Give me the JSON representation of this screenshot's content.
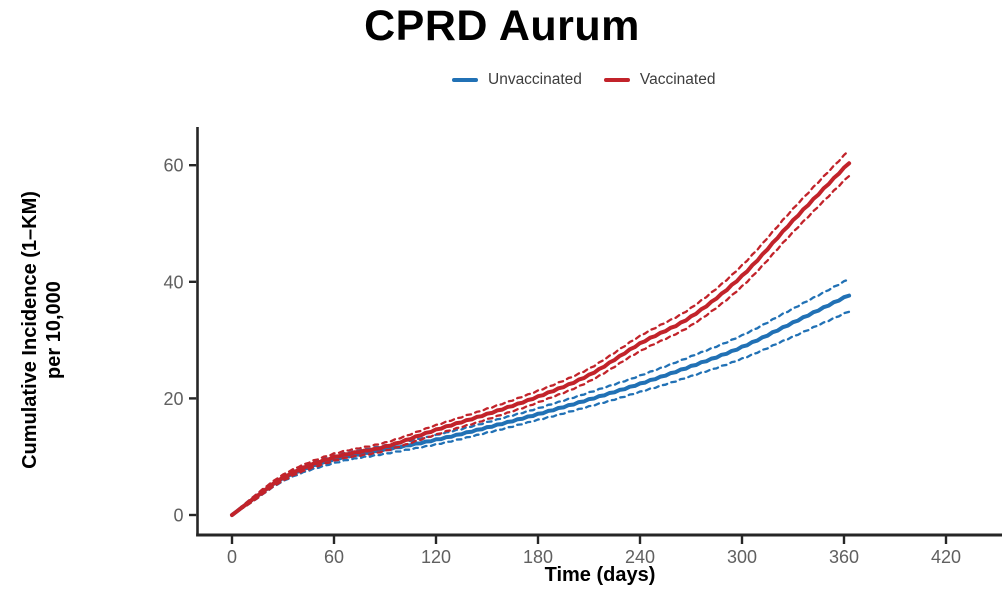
{
  "title": "CPRD Aurum",
  "legend": {
    "items": [
      {
        "label": "Unvaccinated",
        "color": "#2171b5"
      },
      {
        "label": "Vaccinated",
        "color": "#c2232a"
      }
    ]
  },
  "axis": {
    "x_label": "Time (days)",
    "y_label_line1": "Cumulative Incidence (1–KM)",
    "y_label_line2": "per 10,000"
  },
  "colors": {
    "axis_line": "#262626",
    "tick_label": "#606060",
    "title_text": "#000000",
    "legend_text": "#3d3d3d",
    "background": "#ffffff",
    "unvaccinated": "#2171b5",
    "vaccinated": "#c2232a"
  },
  "chart_data": {
    "type": "line",
    "title": "CPRD Aurum",
    "xlabel": "Time (days)",
    "ylabel": "Cumulative Incidence (1–KM) per 10,000",
    "ylabel_lines": [
      "Cumulative Incidence (1–KM)",
      "per 10,000"
    ],
    "x_ticks": [
      0,
      60,
      120,
      180,
      240,
      300,
      360,
      420
    ],
    "y_ticks": [
      0,
      20,
      40,
      60
    ],
    "xlim": [
      -24,
      452
    ],
    "ylim": [
      -3.6,
      66
    ],
    "grid": false,
    "legend_position": "top-center",
    "ci_style": "dashed",
    "x": [
      0,
      10,
      30,
      60,
      90,
      120,
      150,
      180,
      210,
      240,
      270,
      300,
      330,
      365
    ],
    "series": [
      {
        "name": "Unvaccinated",
        "color": "#2171b5",
        "values": [
          0,
          2.2,
          6.3,
          9.5,
          11.2,
          12.9,
          15.0,
          17.3,
          19.8,
          22.5,
          25.5,
          28.8,
          33.0,
          38.0
        ],
        "ci_lower": [
          0,
          1.9,
          5.8,
          8.9,
          10.5,
          12.1,
          14.1,
          16.3,
          18.6,
          21.1,
          23.8,
          26.8,
          30.6,
          35.2
        ],
        "ci_upper": [
          0,
          2.5,
          6.8,
          10.1,
          11.9,
          13.7,
          15.9,
          18.3,
          21.0,
          23.9,
          27.2,
          30.8,
          35.4,
          40.8
        ]
      },
      {
        "name": "Vaccinated",
        "color": "#c2232a",
        "values": [
          0,
          2.2,
          6.4,
          9.9,
          11.7,
          14.6,
          17.3,
          20.3,
          24.0,
          29.4,
          34.0,
          41.0,
          50.5,
          61.0
        ],
        "ci_lower": [
          0,
          1.9,
          5.9,
          9.3,
          11.0,
          13.8,
          16.4,
          19.3,
          22.9,
          28.1,
          32.5,
          39.2,
          48.5,
          58.8
        ],
        "ci_upper": [
          0,
          2.5,
          6.9,
          10.5,
          12.4,
          15.4,
          18.2,
          21.3,
          25.1,
          30.7,
          35.5,
          42.8,
          52.5,
          63.2
        ]
      }
    ]
  }
}
